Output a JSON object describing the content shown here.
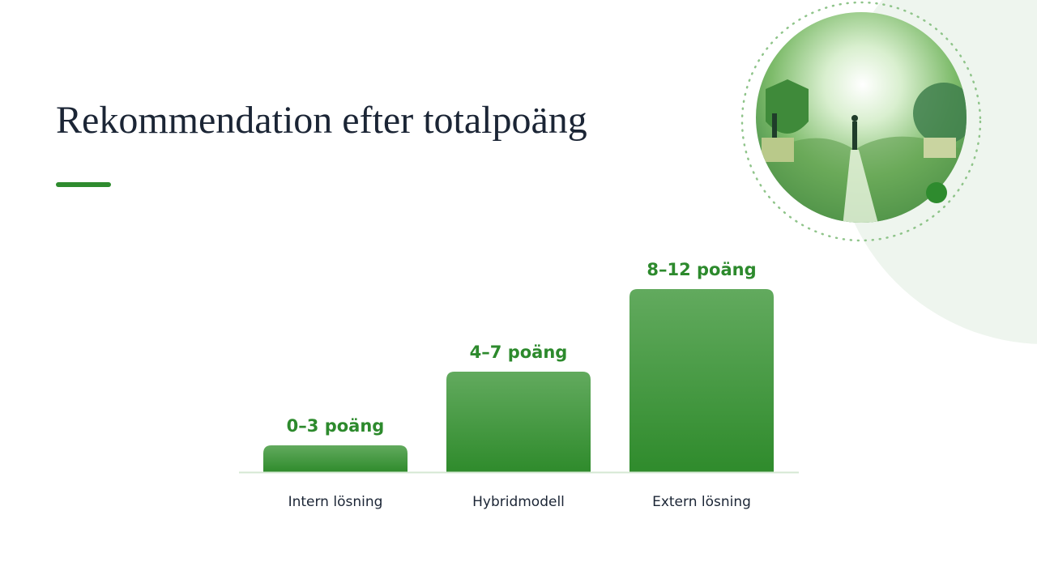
{
  "title": "Rekommendation efter totalpoäng",
  "steps": [
    {
      "score": "0–3 poäng",
      "name": "Intern lösning"
    },
    {
      "score": "4–7 poäng",
      "name": "Hybridmodell"
    },
    {
      "score": "8–12 poäng",
      "name": "Extern lösning"
    }
  ]
}
